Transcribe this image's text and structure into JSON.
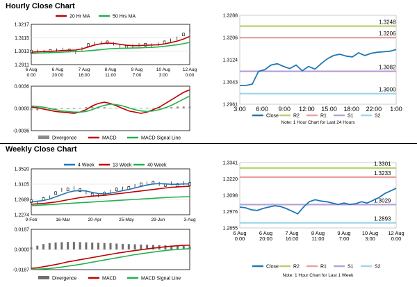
{
  "sections": {
    "hourly_title": "Hourly Close Chart",
    "weekly_title": "Weekly Close Chart"
  },
  "colors": {
    "close": "#1f77b4",
    "ma_short": "#c00000",
    "ma_long": "#22b14c",
    "r2": "#b5d36b",
    "r1": "#e8a0a0",
    "s1": "#b8a0d8",
    "s2": "#9fd6e8",
    "divergence": "#555555",
    "candle": "#000000"
  },
  "chart_data": [
    {
      "id": "hourly_price",
      "type": "line",
      "legend": [
        "20 Hr MA",
        "50 Hrs MA"
      ],
      "y_ticks": [
        "1.3217",
        "1.3115",
        "1.3013",
        "1.2911"
      ],
      "ylim": [
        1.2911,
        1.3217
      ],
      "x_ticks": [
        "6 Aug\n0:00",
        "6 Aug\n20:00",
        "7 Aug\n16:00",
        "8 Aug\n11:00",
        "9 Aug\n7:00",
        "10 Aug\n3:00",
        "12 Aug\n0:00"
      ],
      "series": [
        {
          "name": "Price",
          "values": [
            1.301,
            1.3012,
            1.3008,
            1.3015,
            1.302,
            1.3025,
            1.3018,
            1.3005,
            1.303,
            1.306,
            1.3072,
            1.3075,
            1.308,
            1.3068,
            1.3052,
            1.3045,
            1.305,
            1.306,
            1.3062,
            1.3058,
            1.3065,
            1.308,
            1.3095,
            1.311,
            1.314,
            1.317
          ]
        },
        {
          "name": "20 Hr MA",
          "values": [
            1.3005,
            1.3008,
            1.301,
            1.3012,
            1.3015,
            1.3018,
            1.302,
            1.3022,
            1.303,
            1.3045,
            1.306,
            1.307,
            1.3075,
            1.3072,
            1.3065,
            1.3058,
            1.3055,
            1.3055,
            1.3058,
            1.306,
            1.3062,
            1.3068,
            1.3078,
            1.309,
            1.3105,
            1.3125
          ]
        },
        {
          "name": "50 Hrs MA",
          "values": [
            1.2995,
            1.2998,
            1.3,
            1.3002,
            1.3004,
            1.3006,
            1.3008,
            1.301,
            1.3012,
            1.3016,
            1.302,
            1.3025,
            1.303,
            1.3033,
            1.3035,
            1.3036,
            1.3037,
            1.3038,
            1.304,
            1.3042,
            1.3045,
            1.305,
            1.3056,
            1.3062,
            1.307,
            1.308
          ]
        }
      ]
    },
    {
      "id": "hourly_macd",
      "type": "line",
      "legend": [
        "Divergence",
        "MACD",
        "MACD Signal Line"
      ],
      "y_ticks": [
        "0.0036",
        "0.0000",
        "-0.0036"
      ],
      "ylim": [
        -0.0036,
        0.0036
      ],
      "series": [
        {
          "name": "Divergence",
          "values": [
            -0.0003,
            -0.0003,
            -0.0002,
            -0.0002,
            -0.0002,
            -0.0001,
            -0.0001,
            -0.0001,
            0.0001,
            0.0002,
            0.0003,
            0.0002,
            0.0002,
            0.0001,
            0.0001,
            0.0001,
            0.0001,
            0.0001,
            0.0001,
            0.0001,
            0.0001,
            0.0002,
            0.0002,
            0.0002,
            0.0003,
            0.0003,
            0.0003
          ]
        },
        {
          "name": "MACD",
          "values": [
            0.0002,
            0.0001,
            -0.0001,
            -0.0003,
            -0.0005,
            -0.0006,
            -0.0007,
            -0.0008,
            -0.0006,
            -0.0002,
            0.0004,
            0.0008,
            0.001,
            0.0008,
            0.0004,
            0.0,
            -0.0004,
            -0.0006,
            -0.0008,
            -0.0006,
            -0.0002,
            0.0002,
            0.0008,
            0.0014,
            0.002,
            0.0026,
            0.003
          ]
        },
        {
          "name": "MACD Signal Line",
          "values": [
            0.0004,
            0.0003,
            0.0002,
            0.0,
            -0.0002,
            -0.0004,
            -0.0005,
            -0.0006,
            -0.0006,
            -0.0005,
            -0.0002,
            0.0002,
            0.0005,
            0.0007,
            0.0006,
            0.0004,
            0.0001,
            -0.0002,
            -0.0004,
            -0.0005,
            -0.0004,
            -0.0002,
            0.0001,
            0.0005,
            0.001,
            0.0015,
            0.002
          ]
        }
      ]
    },
    {
      "id": "hourly_pivot",
      "type": "line",
      "y_ticks": [
        "1.3288",
        "1.3206",
        "1.3124",
        "1.3043",
        "1.2961"
      ],
      "ylim": [
        1.2961,
        1.3288
      ],
      "x_ticks": [
        "3:00",
        "6:00",
        "9:00",
        "12:00",
        "15:00",
        "18:00",
        "22:00",
        "1:00"
      ],
      "levels": [
        {
          "name": "R2",
          "value": 1.3248,
          "label": "1.3248"
        },
        {
          "name": "R1",
          "value": 1.3206,
          "label": "1.3206"
        },
        {
          "name": "S1",
          "value": 1.3082,
          "label": "1.3082"
        },
        {
          "name": "S2",
          "value": 1.3,
          "label": "1.3000"
        }
      ],
      "series": [
        {
          "name": "Close",
          "values": [
            1.303,
            1.303,
            1.3035,
            1.3082,
            1.3088,
            1.3105,
            1.311,
            1.31,
            1.3092,
            1.3105,
            1.3084,
            1.31,
            1.309,
            1.311,
            1.3128,
            1.314,
            1.3145,
            1.3138,
            1.3135,
            1.315,
            1.314,
            1.3148,
            1.3152,
            1.3154,
            1.3156,
            1.3162
          ]
        }
      ],
      "legend": [
        "Close",
        "R2",
        "R1",
        "S1",
        "S2"
      ],
      "note": "Note: 1 Hour Chart for Last 24 Hours"
    },
    {
      "id": "weekly_price",
      "type": "line",
      "legend": [
        "4 Week",
        "13 Week",
        "40 Week"
      ],
      "y_ticks": [
        "1.3520",
        "1.3105",
        "1.2689",
        "1.2274"
      ],
      "ylim": [
        1.2274,
        1.352
      ],
      "x_ticks": [
        "9-Feb",
        "16-Mar",
        "20-Apr",
        "25-May",
        "29-Jun",
        "3-Aug"
      ],
      "series": [
        {
          "name": "Price",
          "values": [
            1.264,
            1.26,
            1.27,
            1.274,
            1.286,
            1.295,
            1.296,
            1.3,
            1.294,
            1.288,
            1.282,
            1.28,
            1.285,
            1.29,
            1.296,
            1.298,
            1.3,
            1.305,
            1.31,
            1.312,
            1.314,
            1.311,
            1.308,
            1.312,
            1.308,
            1.313,
            1.311
          ]
        },
        {
          "name": "4 Week",
          "values": [
            1.262,
            1.264,
            1.266,
            1.27,
            1.276,
            1.282,
            1.288,
            1.292,
            1.293,
            1.292,
            1.288,
            1.285,
            1.284,
            1.286,
            1.289,
            1.293,
            1.296,
            1.3,
            1.304,
            1.308,
            1.311,
            1.312,
            1.311,
            1.31,
            1.31,
            1.311,
            1.311
          ]
        },
        {
          "name": "13 Week",
          "values": [
            1.256,
            1.257,
            1.258,
            1.26,
            1.262,
            1.265,
            1.268,
            1.271,
            1.274,
            1.276,
            1.278,
            1.279,
            1.28,
            1.282,
            1.284,
            1.286,
            1.288,
            1.29,
            1.292,
            1.294,
            1.296,
            1.298,
            1.3,
            1.302,
            1.303,
            1.304,
            1.305
          ]
        },
        {
          "name": "40 Week",
          "values": [
            1.252,
            1.253,
            1.254,
            1.255,
            1.256,
            1.257,
            1.258,
            1.259,
            1.26,
            1.261,
            1.262,
            1.263,
            1.264,
            1.265,
            1.266,
            1.267,
            1.268,
            1.269,
            1.27,
            1.271,
            1.272,
            1.273,
            1.274,
            1.275,
            1.2755,
            1.276,
            1.2765
          ]
        }
      ]
    },
    {
      "id": "weekly_macd",
      "type": "line",
      "legend": [
        "Divergence",
        "MACD",
        "MACD Signal Line"
      ],
      "y_ticks": [
        "0.0187",
        "0.0000",
        "-0.0187"
      ],
      "ylim": [
        -0.0187,
        0.0187
      ],
      "series": [
        {
          "name": "Divergence",
          "values": [
            0.002,
            0.0035,
            0.005,
            0.006,
            0.0065,
            0.0068,
            0.007,
            0.007,
            0.0068,
            0.0066,
            0.0064,
            0.0062,
            0.006,
            0.0058,
            0.0055,
            0.0052,
            0.005,
            0.0048,
            0.0046,
            0.0044,
            0.0042,
            0.004,
            0.0038,
            0.0036,
            0.0034,
            0.0032,
            0.003
          ]
        },
        {
          "name": "MACD",
          "values": [
            -0.0175,
            -0.017,
            -0.016,
            -0.015,
            -0.014,
            -0.0128,
            -0.0115,
            -0.0105,
            -0.0095,
            -0.0085,
            -0.0075,
            -0.0065,
            -0.0055,
            -0.0045,
            -0.0035,
            -0.0027,
            -0.0018,
            -0.001,
            -0.0003,
            0.0005,
            0.0012,
            0.0018,
            0.0025,
            0.003,
            0.0034,
            0.0038,
            0.004
          ]
        },
        {
          "name": "MACD Signal Line",
          "values": [
            -0.0185,
            -0.0183,
            -0.018,
            -0.0176,
            -0.017,
            -0.0163,
            -0.0155,
            -0.0147,
            -0.0138,
            -0.0128,
            -0.0118,
            -0.0108,
            -0.0098,
            -0.0088,
            -0.0078,
            -0.0068,
            -0.0058,
            -0.0048,
            -0.004,
            -0.0032,
            -0.0024,
            -0.0017,
            -0.001,
            -0.0004,
            0.0,
            0.0004,
            0.0008
          ]
        }
      ]
    },
    {
      "id": "weekly_pivot",
      "type": "line",
      "y_ticks": [
        "1.3341",
        "1.3220",
        "1.3098",
        "1.2976",
        "1.2855"
      ],
      "ylim": [
        1.2855,
        1.3341
      ],
      "x_ticks": [
        "6 Aug\n0:00",
        "6 Aug\n20:00",
        "7 Aug\n16:00",
        "8 Aug\n11:00",
        "9 Aug\n7:00",
        "10 Aug\n3:00",
        "12 Aug\n0:00"
      ],
      "levels": [
        {
          "name": "R2",
          "value": 1.3301,
          "label": "1.3301"
        },
        {
          "name": "R1",
          "value": 1.3233,
          "label": "1.3233"
        },
        {
          "name": "S1",
          "value": 1.3029,
          "label": "1.3029"
        },
        {
          "name": "S2",
          "value": 1.2893,
          "label": "1.2893"
        }
      ],
      "series": [
        {
          "name": "Close",
          "values": [
            1.301,
            1.3005,
            1.299,
            1.2985,
            1.3,
            1.301,
            1.302,
            1.3015,
            1.3,
            1.298,
            1.296,
            1.301,
            1.305,
            1.3065,
            1.3055,
            1.305,
            1.304,
            1.303,
            1.304,
            1.303,
            1.3035,
            1.305,
            1.304,
            1.306,
            1.308,
            1.311,
            1.313,
            1.315
          ]
        }
      ],
      "legend": [
        "Close",
        "R2",
        "R1",
        "S1",
        "S2"
      ],
      "note": "Note: 1 Hour Chart for Last 1 Week"
    }
  ]
}
